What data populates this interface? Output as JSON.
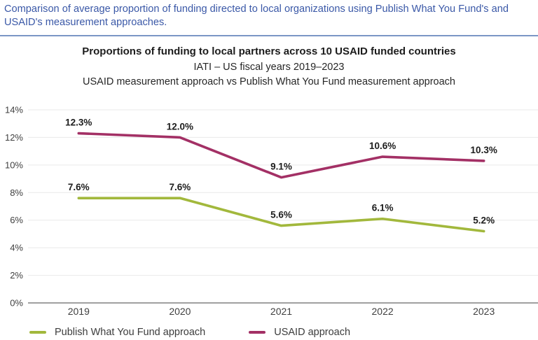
{
  "caption": {
    "text": "Comparison of average proportion of funding directed to local organizations using Publish What You Fund's and USAID's measurement approaches."
  },
  "colors": {
    "caption_text": "#3a58a7",
    "divider": "#7b96c5",
    "grid": "#e9e9e9",
    "axis": "#808080",
    "tick_text": "#3f3f3f",
    "data_label": "#1d1d1d",
    "legend_text": "#3c3c3c",
    "pwyf_green": "#a2b83c",
    "usaid_maroon": "#a33065"
  },
  "chart_data": {
    "type": "line",
    "title": "Proportions of funding to local partners across 10 USAID funded countries",
    "subtitle_period": "IATI – US fiscal years 2019–2023",
    "subtitle_comparison": "USAID measurement approach vs Publish What You Fund measurement approach",
    "categories": [
      "2019",
      "2020",
      "2021",
      "2022",
      "2023"
    ],
    "series": [
      {
        "id": "pwyf",
        "name": "Publish What You Fund approach",
        "values": [
          7.6,
          7.6,
          5.6,
          6.1,
          5.2
        ],
        "labels": [
          "7.6%",
          "7.6%",
          "5.6%",
          "6.1%",
          "5.2%"
        ],
        "color": "#a2b83c"
      },
      {
        "id": "usaid",
        "name": "USAID approach",
        "values": [
          12.3,
          12.0,
          9.1,
          10.6,
          10.3
        ],
        "labels": [
          "12.3%",
          "12.0%",
          "9.1%",
          "10.6%",
          "10.3%"
        ],
        "color": "#a33065"
      }
    ],
    "ylim": [
      0,
      14
    ],
    "ytick_step": 2,
    "ytick_suffix": "%",
    "grid": true,
    "legend_position": "bottom"
  }
}
